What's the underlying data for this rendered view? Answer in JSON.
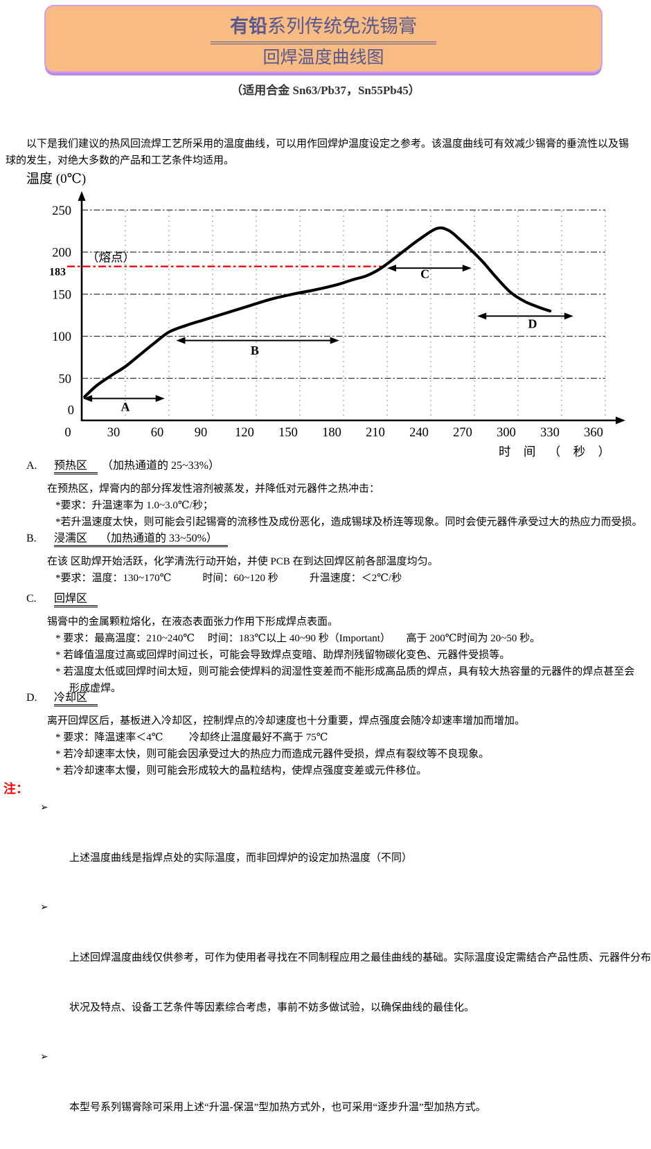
{
  "header": {
    "title_bold": "有铅",
    "title_rest": "系列传统免洗锡膏",
    "title_line2": "回焊温度曲线图",
    "subtitle": "（适用合金 Sn63/Pb37，Sn55Pb45）"
  },
  "intro": {
    "lines": [
      "以下是我们建议的热风回流焊工艺所采用的温度曲线，可以用作回焊炉温度设定之参考。该温度曲线可有效减少锡膏的垂流性以及锡",
      "球的发生，对绝大多数的产品和工艺条件均适用。"
    ]
  },
  "chart_data": {
    "type": "line",
    "ylabel": "温度 (0℃)",
    "xlabel": "时 间 （ 秒 ）",
    "x_ticks": [
      0,
      30,
      60,
      90,
      120,
      150,
      180,
      210,
      240,
      270,
      300,
      330,
      360
    ],
    "y_ticks": [
      0,
      50,
      100,
      150,
      200,
      250
    ],
    "xlim": [
      0,
      368
    ],
    "ylim": [
      0,
      268
    ],
    "grid": true,
    "curve_color": "#000000",
    "curve_points": [
      [
        2,
        28
      ],
      [
        10,
        41
      ],
      [
        20,
        53
      ],
      [
        30,
        64
      ],
      [
        40,
        78
      ],
      [
        50,
        92
      ],
      [
        60,
        105
      ],
      [
        72,
        113
      ],
      [
        85,
        120
      ],
      [
        100,
        128
      ],
      [
        115,
        136
      ],
      [
        130,
        144
      ],
      [
        145,
        150
      ],
      [
        160,
        155
      ],
      [
        175,
        161
      ],
      [
        186,
        167
      ],
      [
        196,
        172
      ],
      [
        205,
        180
      ],
      [
        213,
        190
      ],
      [
        222,
        202
      ],
      [
        232,
        215
      ],
      [
        244,
        228
      ],
      [
        252,
        226
      ],
      [
        260,
        215
      ],
      [
        268,
        202
      ],
      [
        276,
        188
      ],
      [
        285,
        170
      ],
      [
        295,
        152
      ],
      [
        305,
        141
      ],
      [
        315,
        134
      ],
      [
        322,
        130
      ]
    ],
    "melting_point": {
      "value": 183,
      "label": "183",
      "annotation": "（熔点）",
      "color": "#ff0000",
      "line_t_start": -10,
      "line_t_end": 209
    },
    "zones": [
      {
        "label": "A",
        "t1": 1,
        "t2": 57,
        "temp": 26,
        "label_t": 30,
        "label_temp": 11
      },
      {
        "label": "B",
        "t1": 65,
        "t2": 177,
        "temp": 95,
        "label_t": 119,
        "label_temp": 78
      },
      {
        "label": "C",
        "t1": 210,
        "t2": 268,
        "temp": 181,
        "label_t": 236,
        "label_temp": 169
      },
      {
        "label": "D",
        "t1": 272,
        "t2": 338,
        "temp": 124,
        "label_t": 310,
        "label_temp": 110
      }
    ]
  },
  "sections": [
    {
      "letter": "A.",
      "name": "预热区",
      "suffix": "（加热通道的 25~33%）",
      "lines": [
        "在预热区，焊膏内的部分挥发性溶剂被蒸发，并降低对元器件之热冲击：",
        "*要求：升温速率为 1.0~3.0℃/秒；",
        "*若升温速度太快，则可能会引起锡膏的流移性及成份恶化，造成锡球及桥连等现象。同时会使元器件承受过大的热应力而受损。"
      ]
    },
    {
      "letter": "B.",
      "name": "浸濡区",
      "suffix": "（加热通道的 33~50%）",
      "lines": [
        "在该 区助焊开始活跃，化学清洗行动开始，并使 PCB 在到达回焊区前各部温度均匀。",
        "*要求：温度：130~170℃            时间：60~120 秒            升温速度：＜2℃/秒"
      ]
    },
    {
      "letter": "C.",
      "name": "回焊区",
      "suffix": "",
      "lines": [
        "锡膏中的金属颗粒熔化，在液态表面张力作用下形成焊点表面。",
        "* 要求：最高温度：210~240℃     时间：183℃以上 40~90 秒（Important）      高于 200℃时间为 20~50 秒。",
        "* 若峰值温度过高或回焊时间过长，可能会导致焊点变暗、助焊剂残留物碳化变色、元器件受损等。",
        "* 若温度太低或回焊时间太短，则可能会使焊料的润湿性变差而不能形成高品质的焊点，具有较大热容量的元器件的焊点甚至会",
        "形成虚焊。"
      ]
    },
    {
      "letter": "D.",
      "name": "冷却区",
      "suffix": "",
      "lines": [
        "离开回焊区后，基板进入冷却区，控制焊点的冷却速度也十分重要，焊点强度会随冷却速率增加而增加。",
        "* 要求：降温速率＜4℃          冷却终止温度最好不高于 75℃",
        "* 若冷却速率太快，则可能会因承受过大的热应力而造成元器件受损，焊点有裂纹等不良现象。",
        "* 若冷却速率太慢，则可能会形成较大的晶粒结构，使焊点强度变差或元件移位。"
      ]
    }
  ],
  "notes": {
    "label": "注：",
    "bullet_glyph": "➢",
    "items": [
      {
        "lines": [
          "上述温度曲线是指焊点处的实际温度，而非回焊炉的设定加热温度（不同）"
        ]
      },
      {
        "lines": [
          "上述回焊温度曲线仅供参考，可作为使用者寻找在不同制程应用之最佳曲线的基础。实际温度设定需结合产品性质、元器件分布",
          "状况及特点、设备工艺条件等因素综合考虑，事前不妨多做试验，以确保曲线的最佳化。"
        ]
      },
      {
        "lines": [
          "本型号系列锡膏除可采用上述“升温-保温”型加热方式外，也可采用“逐步升温”型加热方式。"
        ]
      }
    ]
  }
}
